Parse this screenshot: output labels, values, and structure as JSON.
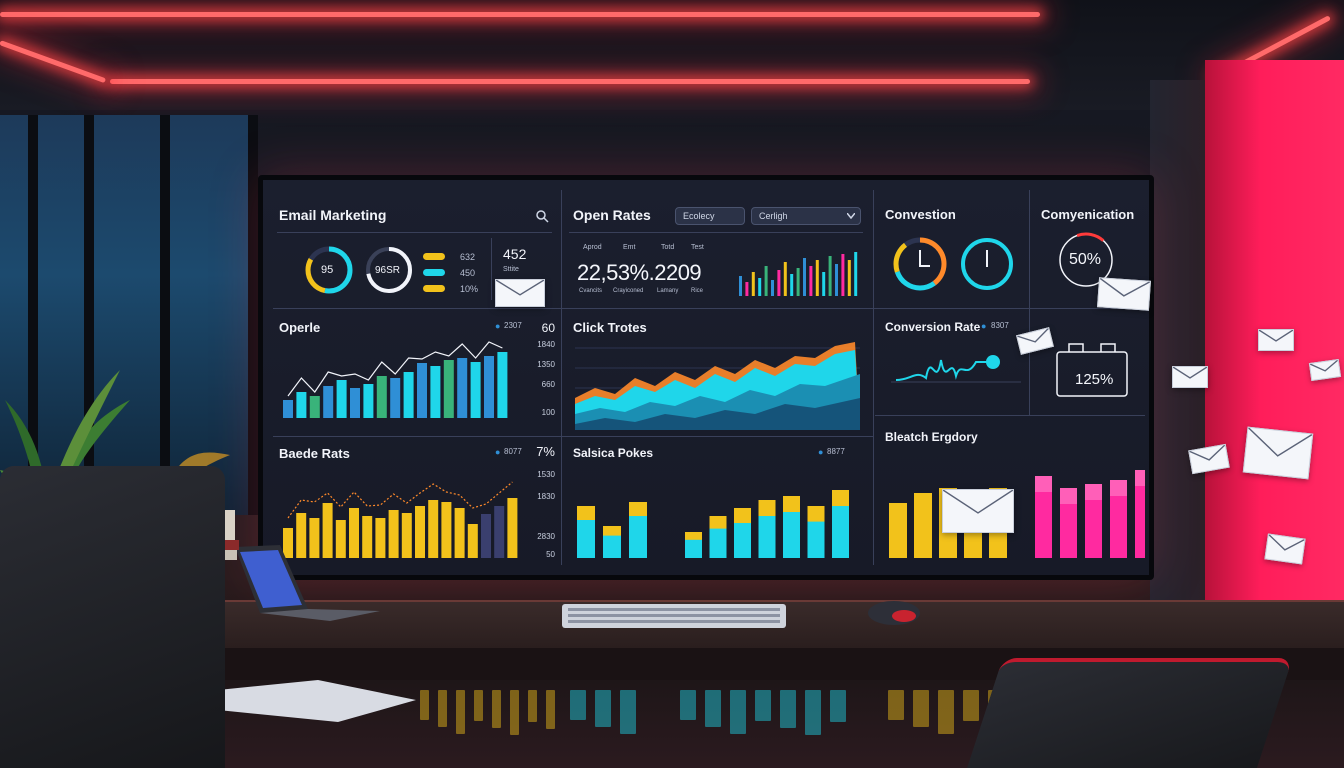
{
  "panels": {
    "email_marketing": {
      "title": "Email Marketing",
      "ring1": "95",
      "ring2": "96SR",
      "legend": [
        "632",
        "450",
        "10%"
      ],
      "side_value": "452",
      "side_label": "Sttite"
    },
    "open_rates": {
      "title": "Open Rates",
      "dropdown1": "Ecolecy",
      "dropdown2": "Cerligh",
      "headers": [
        "Aprod",
        "Emt",
        "Totd",
        "Test"
      ],
      "value": "22,53%.2209",
      "footers": [
        "Cvancits",
        "Crayiconed",
        "Lamany",
        "Rice"
      ]
    },
    "conversion": {
      "title": "Convestion"
    },
    "communication": {
      "title": "Comyenication",
      "value": "50%"
    },
    "opens": {
      "title": "Operle",
      "legend": "2307",
      "ticks": [
        "60",
        "1840",
        "1350",
        "660",
        "100"
      ]
    },
    "click_rates": {
      "title": "Click Trotes"
    },
    "conversion_rate": {
      "title": "Conversion Rate",
      "legend": "8307",
      "value": "125%"
    },
    "bounce_rates": {
      "title": "Baede Rats",
      "legend": "8077",
      "ticks": [
        "7%",
        "1530",
        "1830",
        "2830",
        "50"
      ]
    },
    "sales_pokes": {
      "title": "Salsica Pokes",
      "legend": "8877"
    },
    "breach_engory": {
      "title": "Bleatch Ergdory"
    }
  },
  "chart_values": {
    "opens_bars": [
      18,
      26,
      22,
      32,
      38,
      30,
      34,
      42,
      40,
      46,
      55,
      52,
      58,
      60,
      56,
      62,
      66
    ],
    "bounce_bars": [
      30,
      45,
      40,
      55,
      38,
      50,
      42,
      40,
      48,
      45,
      52,
      58,
      56,
      50,
      34,
      44,
      52,
      60
    ],
    "sales_bars_left": [
      52,
      32,
      56
    ],
    "sales_bars_right": [
      26,
      42,
      50,
      58,
      62,
      52,
      68
    ],
    "breach_bars_left": [
      55,
      65,
      70,
      62,
      70
    ],
    "breach_bars_right": [
      82,
      70,
      74,
      78,
      88
    ],
    "open_rates_mini": [
      20,
      14,
      24,
      18,
      30,
      16,
      26,
      34,
      22,
      28,
      38,
      30,
      36,
      24,
      40,
      32,
      42,
      36,
      44
    ]
  },
  "colors": {
    "cyan": "#1fd6ea",
    "yellow": "#f2c21b",
    "magenta": "#ff2aa0",
    "green": "#39b37a",
    "orange": "#ff8a2a",
    "blue": "#2f8fd6",
    "pink": "#ff1d5a",
    "neon_red": "#ff5a5a"
  },
  "icons": [
    "search-icon",
    "chevron-down-icon",
    "envelope-icon",
    "clock-icon",
    "battery-icon"
  ]
}
